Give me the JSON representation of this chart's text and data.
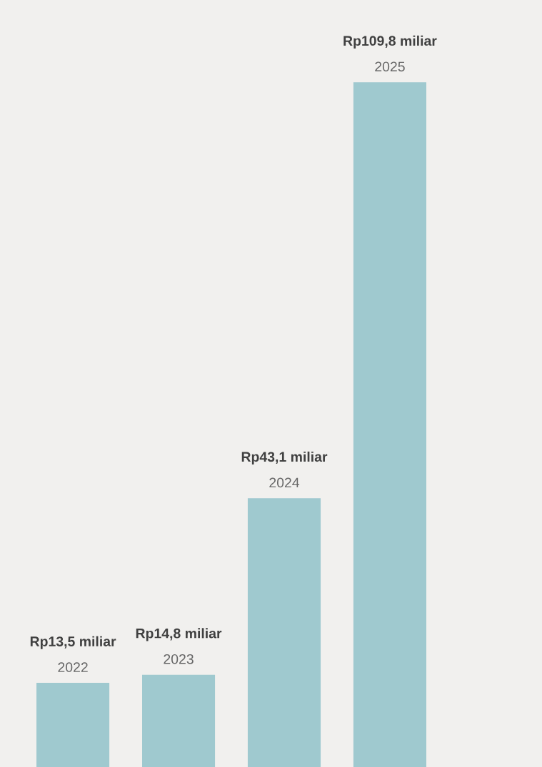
{
  "chart_data": {
    "type": "bar",
    "categories": [
      "2022",
      "2023",
      "2024",
      "2025"
    ],
    "values": [
      13.5,
      14.8,
      43.1,
      109.8
    ],
    "value_labels": [
      "Rp13,5 miliar",
      "Rp14,8 miliar",
      "Rp43,1 miliar",
      "Rp109,8 miliar"
    ],
    "color": "#9fc9cf"
  }
}
